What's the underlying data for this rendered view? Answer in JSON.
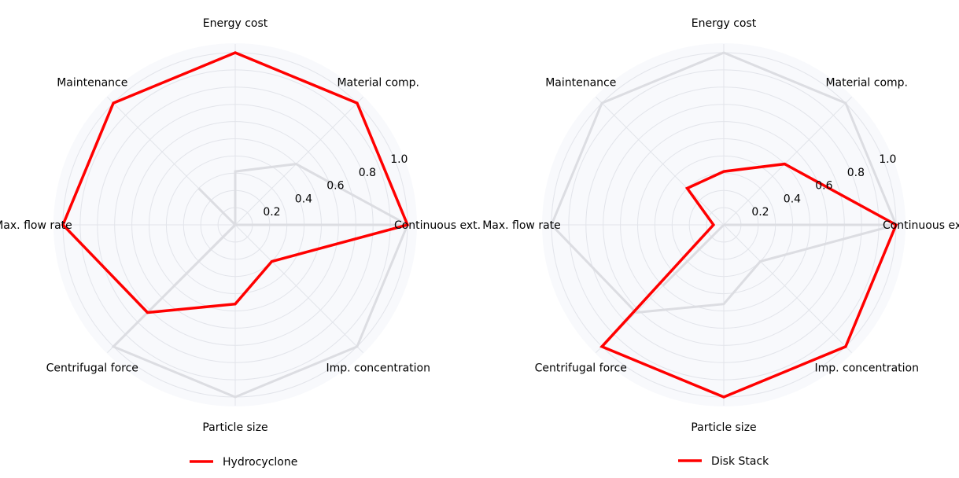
{
  "chart_data": [
    {
      "type": "radar",
      "axes": [
        "Continuous ext.",
        "Material comp.",
        "Energy cost",
        "Maintenance",
        "Max. flow rate",
        "Centrifugal force",
        "Particle size",
        "Imp. concentration"
      ],
      "rlim": [
        0,
        1.0
      ],
      "radial_ticks": [
        0.2,
        0.4,
        0.6,
        0.8,
        1.0
      ],
      "radial_tick_labels": [
        "0.2",
        "0.4",
        "0.6",
        "0.8",
        "1.0"
      ],
      "grid": true,
      "legend": {
        "placement": "bottom",
        "entries": [
          "Hydrocyclone"
        ]
      },
      "highlight_color": "#ff0000",
      "background_color": "#e5e5e5",
      "series": [
        {
          "name": "Hydrocyclone",
          "highlight": true,
          "values": [
            1.0,
            1.0,
            1.0,
            1.0,
            1.0,
            0.72,
            0.46,
            0.3
          ]
        },
        {
          "highlight": false,
          "values": [
            1.0,
            0.5,
            0.31,
            0.0,
            0.0,
            0.5,
            0.0,
            0.0
          ]
        },
        {
          "highlight": false,
          "values": [
            0.0,
            0.0,
            0.0,
            0.3,
            0.0,
            0.0,
            0.0,
            0.0
          ]
        },
        {
          "highlight": false,
          "values": [
            0.0,
            0.0,
            0.0,
            0.0,
            0.0,
            0.0,
            0.0,
            0.0
          ]
        },
        {
          "highlight": false,
          "values": [
            1.0,
            0.0,
            0.0,
            0.0,
            0.0,
            1.0,
            1.0,
            1.0
          ]
        }
      ]
    },
    {
      "type": "radar",
      "axes": [
        "Continuous ext.",
        "Material comp.",
        "Energy cost",
        "Maintenance",
        "Max. flow rate",
        "Centrifugal force",
        "Particle size",
        "Imp. concentration"
      ],
      "rlim": [
        0,
        1.0
      ],
      "radial_ticks": [
        0.2,
        0.4,
        0.6,
        0.8,
        1.0
      ],
      "radial_tick_labels": [
        "0.2",
        "0.4",
        "0.6",
        "0.8",
        "1.0"
      ],
      "grid": true,
      "legend": {
        "placement": "bottom",
        "entries": [
          "Disk Stack"
        ]
      },
      "highlight_color": "#ff0000",
      "background_color": "#e5e5e5",
      "series": [
        {
          "name": "Disk Stack",
          "highlight": true,
          "values": [
            1.0,
            0.5,
            0.31,
            0.3,
            0.06,
            1.0,
            1.0,
            1.0
          ]
        },
        {
          "highlight": false,
          "values": [
            1.0,
            1.0,
            1.0,
            1.0,
            1.0,
            0.72,
            0.46,
            0.3
          ]
        },
        {
          "highlight": false,
          "values": [
            0.0,
            0.0,
            0.0,
            0.0,
            0.0,
            0.5,
            0.0,
            0.0
          ]
        },
        {
          "highlight": false,
          "values": [
            0.0,
            0.0,
            0.0,
            0.0,
            0.0,
            0.0,
            0.0,
            0.0
          ]
        },
        {
          "highlight": false,
          "values": [
            1.0,
            0.0,
            0.0,
            0.0,
            0.0,
            0.0,
            0.0,
            0.0
          ]
        }
      ]
    }
  ]
}
